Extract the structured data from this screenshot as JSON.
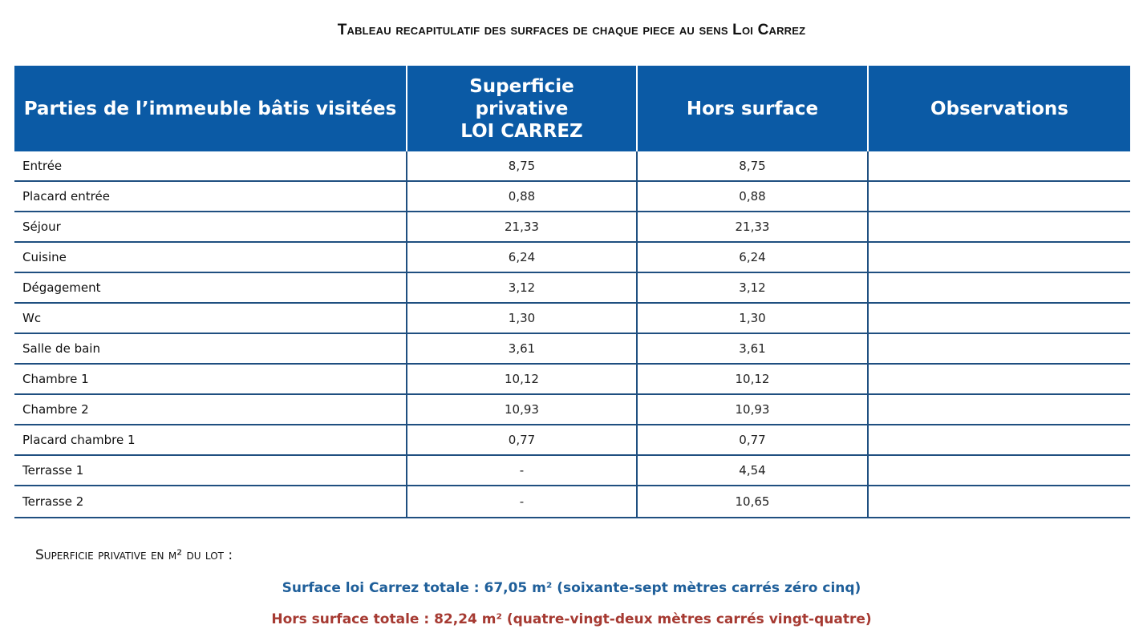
{
  "title": "Tableau recapitulatif des surfaces de chaque piece au sens Loi Carrez",
  "table": {
    "headers": {
      "parties": "Parties de l’immeuble bâtis visitées",
      "superficie_line1": "Superficie",
      "superficie_line2": "privative",
      "superficie_line3": "LOI CARREZ",
      "hors_surface": "Hors surface",
      "observations": "Observations"
    },
    "rows": [
      {
        "room": "Entrée",
        "carrez": "8,75",
        "hors": "8,75",
        "obs": ""
      },
      {
        "room": "Placard entrée",
        "carrez": "0,88",
        "hors": "0,88",
        "obs": ""
      },
      {
        "room": "Séjour",
        "carrez": "21,33",
        "hors": "21,33",
        "obs": ""
      },
      {
        "room": "Cuisine",
        "carrez": "6,24",
        "hors": "6,24",
        "obs": ""
      },
      {
        "room": "Dégagement",
        "carrez": "3,12",
        "hors": "3,12",
        "obs": ""
      },
      {
        "room": "Wc",
        "carrez": "1,30",
        "hors": "1,30",
        "obs": ""
      },
      {
        "room": "Salle de bain",
        "carrez": "3,61",
        "hors": "3,61",
        "obs": ""
      },
      {
        "room": "Chambre 1",
        "carrez": "10,12",
        "hors": "10,12",
        "obs": ""
      },
      {
        "room": "Chambre 2",
        "carrez": "10,93",
        "hors": "10,93",
        "obs": ""
      },
      {
        "room": "Placard chambre 1",
        "carrez": "0,77",
        "hors": "0,77",
        "obs": ""
      },
      {
        "room": "Terrasse 1",
        "carrez": "-",
        "hors": "4,54",
        "obs": ""
      },
      {
        "room": "Terrasse 2",
        "carrez": "-",
        "hors": "10,65",
        "obs": ""
      }
    ]
  },
  "summary": {
    "label": "Superficie privative en m² du lot :",
    "carrez_total": "Surface loi Carrez totale : 67,05 m² (soixante-sept mètres carrés zéro cinq)",
    "hors_total": "Hors surface totale : 82,24 m² (quatre-vingt-deux mètres carrés vingt-quatre)"
  },
  "colors": {
    "header_bg": "#0b5aa5",
    "grid_line": "#1f4f80",
    "carrez_text": "#1f5f9a",
    "hors_text": "#a63a32"
  }
}
